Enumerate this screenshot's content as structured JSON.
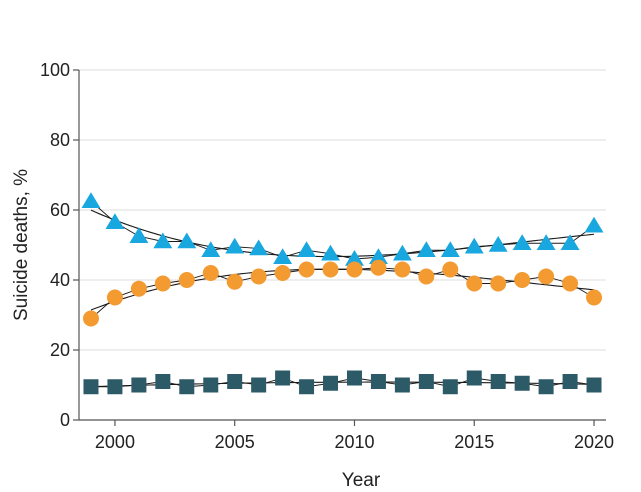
{
  "chart_data": {
    "type": "line",
    "title": "",
    "xlabel": "Year",
    "ylabel": "Suicide deaths, %",
    "xlim": [
      1998.5,
      2020.5
    ],
    "ylim": [
      0,
      100
    ],
    "x_ticks": [
      2000,
      2005,
      2010,
      2015,
      2020
    ],
    "y_ticks": [
      0,
      20,
      40,
      60,
      80,
      100
    ],
    "grid": true,
    "legend": "none",
    "x": [
      1999,
      2000,
      2001,
      2002,
      2003,
      2004,
      2005,
      2006,
      2007,
      2008,
      2009,
      2010,
      2011,
      2012,
      2013,
      2014,
      2015,
      2016,
      2017,
      2018,
      2019,
      2020
    ],
    "series": [
      {
        "marker": "triangle",
        "color": "#19a7e0",
        "values": [
          62.5,
          56.5,
          52.5,
          51,
          51,
          48.5,
          49.5,
          49,
          46.5,
          48.5,
          47.5,
          46,
          46.5,
          47.5,
          48.5,
          48.5,
          49.5,
          50,
          50.5,
          50.5,
          50.5,
          55.5
        ]
      },
      {
        "marker": "circle",
        "color": "#f39a30",
        "values": [
          29,
          35,
          37.5,
          39,
          40,
          42,
          39.5,
          41,
          42,
          43,
          43,
          43,
          43.5,
          43,
          41,
          43,
          39,
          39,
          40,
          41,
          39,
          35
        ]
      },
      {
        "marker": "square",
        "color": "#2d5a67",
        "values": [
          9.5,
          9.5,
          10,
          11,
          9.5,
          10,
          11,
          10,
          12,
          9.5,
          10.5,
          12,
          11,
          10,
          11,
          9.5,
          12,
          11,
          10.5,
          9.5,
          11,
          10
        ]
      }
    ]
  }
}
